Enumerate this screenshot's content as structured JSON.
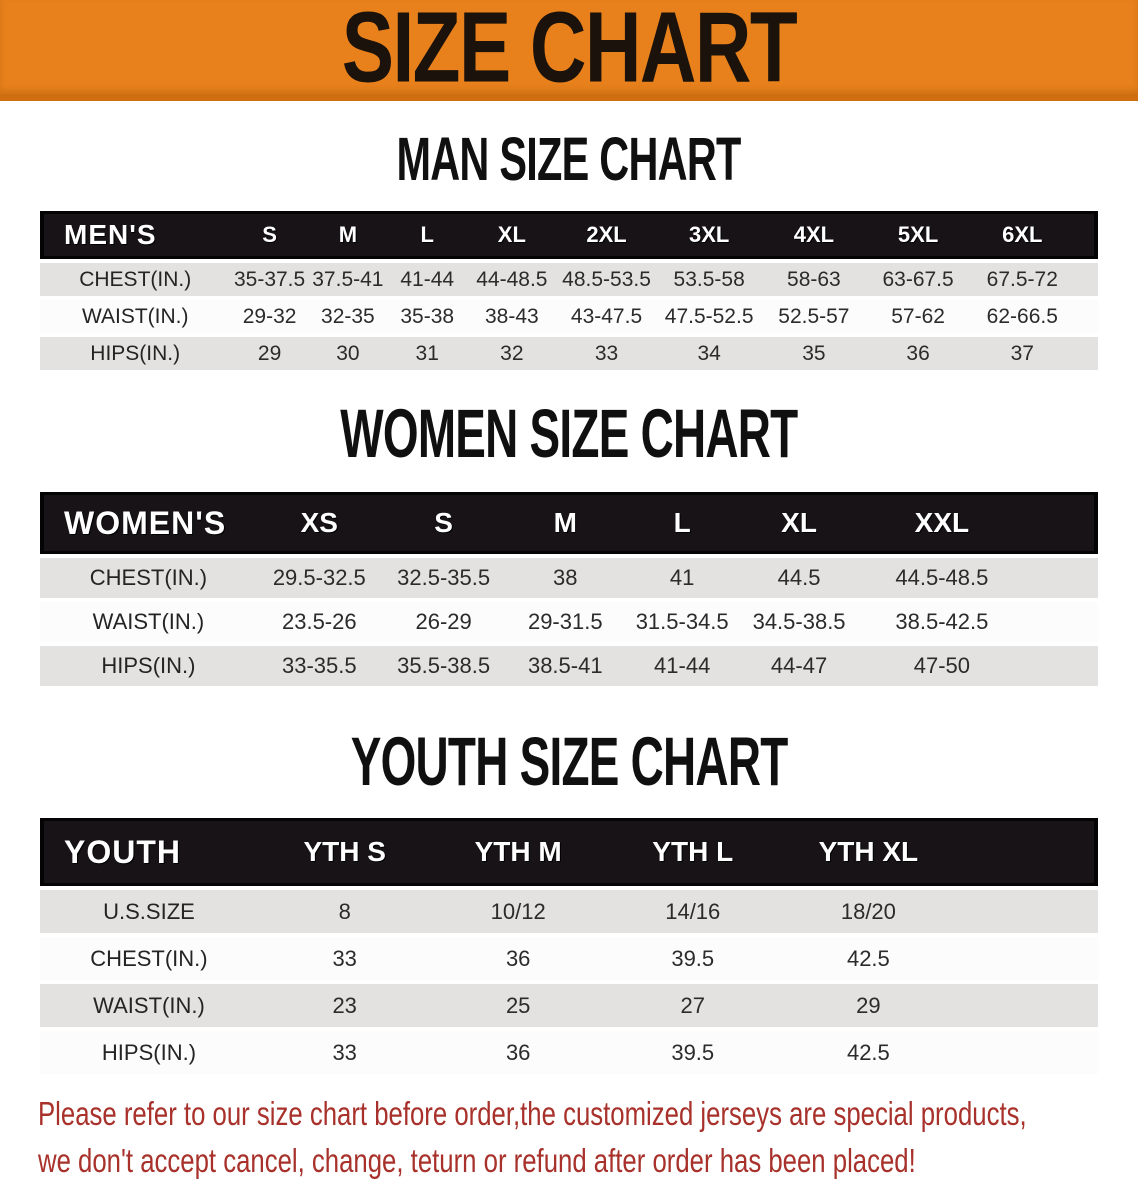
{
  "banner": {
    "title": "SIZE CHART",
    "background_color": "#E8811C",
    "text_color": "#1A120B"
  },
  "sections": [
    {
      "key": "men",
      "title": "MAN SIZE CHART",
      "header_label": "MEN'S",
      "columns": [
        "S",
        "M",
        "L",
        "XL",
        "2XL",
        "3XL",
        "4XL",
        "5XL",
        "6XL"
      ],
      "rows": [
        {
          "label": "CHEST(IN.)",
          "values": [
            "35-37.5",
            "37.5-41",
            "41-44",
            "44-48.5",
            "48.5-53.5",
            "53.5-58",
            "58-63",
            "63-67.5",
            "67.5-72"
          ]
        },
        {
          "label": "WAIST(IN.)",
          "values": [
            "29-32",
            "32-35",
            "35-38",
            "38-43",
            "43-47.5",
            "47.5-52.5",
            "52.5-57",
            "57-62",
            "62-66.5"
          ]
        },
        {
          "label": "HIPS(IN.)",
          "values": [
            "29",
            "30",
            "31",
            "32",
            "33",
            "34",
            "35",
            "36",
            "37"
          ]
        }
      ]
    },
    {
      "key": "women",
      "title": "WOMEN SIZE CHART",
      "header_label": "WOMEN'S",
      "columns": [
        "XS",
        "S",
        "M",
        "L",
        "XL",
        "XXL"
      ],
      "rows": [
        {
          "label": "CHEST(IN.)",
          "values": [
            "29.5-32.5",
            "32.5-35.5",
            "38",
            "41",
            "44.5",
            "44.5-48.5"
          ]
        },
        {
          "label": "WAIST(IN.)",
          "values": [
            "23.5-26",
            "26-29",
            "29-31.5",
            "31.5-34.5",
            "34.5-38.5",
            "38.5-42.5"
          ]
        },
        {
          "label": "HIPS(IN.)",
          "values": [
            "33-35.5",
            "35.5-38.5",
            "38.5-41",
            "41-44",
            "44-47",
            "47-50"
          ]
        }
      ]
    },
    {
      "key": "youth",
      "title": "YOUTH SIZE CHART",
      "header_label": "YOUTH",
      "columns": [
        "YTH S",
        "YTH M",
        "YTH L",
        "YTH XL"
      ],
      "rows": [
        {
          "label": "U.S.SIZE",
          "values": [
            "8",
            "10/12",
            "14/16",
            "18/20"
          ]
        },
        {
          "label": "CHEST(IN.)",
          "values": [
            "33",
            "36",
            "39.5",
            "42.5"
          ]
        },
        {
          "label": "WAIST(IN.)",
          "values": [
            "23",
            "25",
            "27",
            "29"
          ]
        },
        {
          "label": "HIPS(IN.)",
          "values": [
            "33",
            "36",
            "39.5",
            "42.5"
          ]
        }
      ]
    }
  ],
  "chart_data": {
    "type": "table",
    "tables": [
      "MAN SIZE CHART",
      "WOMEN SIZE CHART",
      "YOUTH SIZE CHART"
    ]
  },
  "disclaimer": {
    "line1": "Please refer to our size chart before order,the customized jerseys are special products,",
    "line2": "we don't accept cancel, change, teturn or refund after order has been placed!",
    "text_color": "#A8322B"
  }
}
